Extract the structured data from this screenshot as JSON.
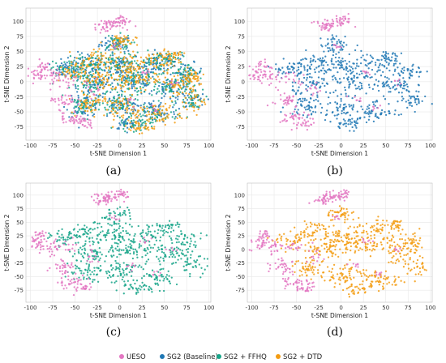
{
  "chart_data": [
    {
      "panel": "(a)",
      "type": "scatter",
      "xlabel": "t-SNE Dimension 1",
      "ylabel": "t-SNE Dimension 2",
      "xlim": [
        -105,
        102
      ],
      "ylim": [
        -97,
        122
      ],
      "xticks": [
        -100,
        -75,
        -50,
        -25,
        0,
        25,
        50,
        75,
        100
      ],
      "yticks": [
        -75,
        -50,
        -25,
        0,
        25,
        50,
        75,
        100
      ],
      "series_shown": [
        "UESO",
        "SG2 (Baseline)",
        "SG2 + FFHQ",
        "SG2 + DTD"
      ]
    },
    {
      "panel": "(b)",
      "type": "scatter",
      "xlabel": "t-SNE Dimension 1",
      "ylabel": "t-SNE Dimension 2",
      "xlim": [
        -105,
        102
      ],
      "ylim": [
        -97,
        122
      ],
      "xticks": [
        -100,
        -75,
        -50,
        -25,
        0,
        25,
        50,
        75,
        100
      ],
      "yticks": [
        -75,
        -50,
        -25,
        0,
        25,
        50,
        75,
        100
      ],
      "series_shown": [
        "UESO",
        "SG2 (Baseline)"
      ]
    },
    {
      "panel": "(c)",
      "type": "scatter",
      "xlabel": "t-SNE Dimension 1",
      "ylabel": "t-SNE Dimension 2",
      "xlim": [
        -105,
        102
      ],
      "ylim": [
        -97,
        122
      ],
      "xticks": [
        -100,
        -75,
        -50,
        -25,
        0,
        25,
        50,
        75,
        100
      ],
      "yticks": [
        -75,
        -50,
        -25,
        0,
        25,
        50,
        75,
        100
      ],
      "series_shown": [
        "UESO",
        "SG2 + FFHQ"
      ]
    },
    {
      "panel": "(d)",
      "type": "scatter",
      "xlabel": "t-SNE Dimension 1",
      "ylabel": "t-SNE Dimension 2",
      "xlim": [
        -105,
        102
      ],
      "ylim": [
        -97,
        122
      ],
      "xticks": [
        -100,
        -75,
        -50,
        -25,
        0,
        25,
        50,
        75,
        100
      ],
      "yticks": [
        -75,
        -50,
        -25,
        0,
        25,
        50,
        75,
        100
      ],
      "series_shown": [
        "UESO",
        "SG2 + DTD"
      ]
    }
  ],
  "series": [
    {
      "name": "UESO",
      "color": "#e377c2",
      "clusters": [
        {
          "cx": -12,
          "cy": 96,
          "sx": 9,
          "sy": 4,
          "n": 40
        },
        {
          "cx": 3,
          "cy": 103,
          "sx": 5,
          "sy": 4,
          "n": 18
        },
        {
          "cx": -20,
          "cy": 88,
          "sx": 5,
          "sy": 3,
          "n": 12
        },
        {
          "cx": -92,
          "cy": 12,
          "sx": 6,
          "sy": 7,
          "n": 30
        },
        {
          "cx": -87,
          "cy": 28,
          "sx": 4,
          "sy": 4,
          "n": 14
        },
        {
          "cx": -75,
          "cy": 5,
          "sx": 5,
          "sy": 8,
          "n": 20
        },
        {
          "cx": -63,
          "cy": -30,
          "sx": 7,
          "sy": 8,
          "n": 30
        },
        {
          "cx": -52,
          "cy": -60,
          "sx": 8,
          "sy": 7,
          "n": 34
        },
        {
          "cx": -40,
          "cy": -70,
          "sx": 5,
          "sy": 4,
          "n": 16
        },
        {
          "cx": -55,
          "cy": 5,
          "sx": 7,
          "sy": 6,
          "n": 14
        },
        {
          "cx": -30,
          "cy": -12,
          "sx": 6,
          "sy": 8,
          "n": 12
        },
        {
          "cx": 28,
          "cy": 15,
          "sx": 3,
          "sy": 3,
          "n": 6
        },
        {
          "cx": 15,
          "cy": -30,
          "sx": 4,
          "sy": 4,
          "n": 6
        },
        {
          "cx": 60,
          "cy": 0,
          "sx": 3,
          "sy": 3,
          "n": 5
        },
        {
          "cx": -5,
          "cy": 58,
          "sx": 3,
          "sy": 3,
          "n": 6
        },
        {
          "cx": 40,
          "cy": -45,
          "sx": 3,
          "sy": 3,
          "n": 5
        }
      ]
    },
    {
      "name": "SG2 (Baseline)",
      "color": "#1f77b4",
      "clusters": [
        {
          "cx": -5,
          "cy": 62,
          "sx": 9,
          "sy": 7,
          "n": 40
        },
        {
          "cx": -60,
          "cy": 20,
          "sx": 9,
          "sy": 7,
          "n": 40
        },
        {
          "cx": -35,
          "cy": 30,
          "sx": 10,
          "sy": 9,
          "n": 45
        },
        {
          "cx": 0,
          "cy": 28,
          "sx": 12,
          "sy": 10,
          "n": 55
        },
        {
          "cx": 40,
          "cy": 30,
          "sx": 12,
          "sy": 10,
          "n": 50
        },
        {
          "cx": 75,
          "cy": 15,
          "sx": 9,
          "sy": 8,
          "n": 35
        },
        {
          "cx": -30,
          "cy": -5,
          "sx": 12,
          "sy": 10,
          "n": 55
        },
        {
          "cx": 15,
          "cy": 0,
          "sx": 14,
          "sy": 10,
          "n": 60
        },
        {
          "cx": 60,
          "cy": -10,
          "sx": 12,
          "sy": 10,
          "n": 50
        },
        {
          "cx": -40,
          "cy": -40,
          "sx": 10,
          "sy": 9,
          "n": 45
        },
        {
          "cx": 0,
          "cy": -40,
          "sx": 12,
          "sy": 10,
          "n": 55
        },
        {
          "cx": 40,
          "cy": -50,
          "sx": 12,
          "sy": 9,
          "n": 50
        },
        {
          "cx": 10,
          "cy": -70,
          "sx": 9,
          "sy": 5,
          "n": 30
        },
        {
          "cx": 80,
          "cy": -30,
          "sx": 8,
          "sy": 9,
          "n": 30
        },
        {
          "cx": 55,
          "cy": 40,
          "sx": 7,
          "sy": 5,
          "n": 20
        }
      ]
    },
    {
      "name": "SG2 + FFHQ",
      "color": "#17a589",
      "clusters": [
        {
          "cx": -5,
          "cy": 62,
          "sx": 9,
          "sy": 8,
          "n": 40
        },
        {
          "cx": -60,
          "cy": 20,
          "sx": 9,
          "sy": 7,
          "n": 40
        },
        {
          "cx": -35,
          "cy": 30,
          "sx": 10,
          "sy": 9,
          "n": 45
        },
        {
          "cx": 0,
          "cy": 28,
          "sx": 12,
          "sy": 10,
          "n": 55
        },
        {
          "cx": 40,
          "cy": 30,
          "sx": 12,
          "sy": 10,
          "n": 50
        },
        {
          "cx": 75,
          "cy": 15,
          "sx": 9,
          "sy": 8,
          "n": 35
        },
        {
          "cx": -30,
          "cy": -5,
          "sx": 12,
          "sy": 10,
          "n": 55
        },
        {
          "cx": 15,
          "cy": 0,
          "sx": 14,
          "sy": 10,
          "n": 60
        },
        {
          "cx": 60,
          "cy": -10,
          "sx": 12,
          "sy": 10,
          "n": 50
        },
        {
          "cx": -40,
          "cy": -40,
          "sx": 10,
          "sy": 9,
          "n": 45
        },
        {
          "cx": 0,
          "cy": -40,
          "sx": 12,
          "sy": 10,
          "n": 55
        },
        {
          "cx": 40,
          "cy": -55,
          "sx": 12,
          "sy": 9,
          "n": 50
        },
        {
          "cx": 15,
          "cy": -72,
          "sx": 10,
          "sy": 5,
          "n": 30
        },
        {
          "cx": 82,
          "cy": -28,
          "sx": 8,
          "sy": 9,
          "n": 30
        },
        {
          "cx": 55,
          "cy": 42,
          "sx": 7,
          "sy": 5,
          "n": 20
        }
      ]
    },
    {
      "name": "SG2 + DTD",
      "color": "#f39c12",
      "clusters": [
        {
          "cx": 0,
          "cy": 65,
          "sx": 9,
          "sy": 7,
          "n": 40
        },
        {
          "cx": -55,
          "cy": 15,
          "sx": 9,
          "sy": 7,
          "n": 35
        },
        {
          "cx": -30,
          "cy": 35,
          "sx": 10,
          "sy": 9,
          "n": 45
        },
        {
          "cx": 5,
          "cy": 25,
          "sx": 12,
          "sy": 10,
          "n": 55
        },
        {
          "cx": 45,
          "cy": 35,
          "sx": 12,
          "sy": 9,
          "n": 50
        },
        {
          "cx": 80,
          "cy": 10,
          "sx": 8,
          "sy": 8,
          "n": 35
        },
        {
          "cx": -20,
          "cy": 0,
          "sx": 12,
          "sy": 10,
          "n": 55
        },
        {
          "cx": 20,
          "cy": 5,
          "sx": 14,
          "sy": 10,
          "n": 60
        },
        {
          "cx": 65,
          "cy": -5,
          "sx": 11,
          "sy": 10,
          "n": 45
        },
        {
          "cx": -35,
          "cy": -35,
          "sx": 10,
          "sy": 9,
          "n": 45
        },
        {
          "cx": 5,
          "cy": -45,
          "sx": 12,
          "sy": 10,
          "n": 55
        },
        {
          "cx": 45,
          "cy": -55,
          "sx": 12,
          "sy": 9,
          "n": 50
        },
        {
          "cx": 20,
          "cy": -75,
          "sx": 9,
          "sy": 5,
          "n": 30
        },
        {
          "cx": 85,
          "cy": -35,
          "sx": 7,
          "sy": 8,
          "n": 25
        },
        {
          "cx": 60,
          "cy": 45,
          "sx": 7,
          "sy": 5,
          "n": 20
        }
      ]
    }
  ],
  "legend": {
    "placement": "bottom",
    "items": [
      {
        "label": "UESO",
        "color": "#e377c2"
      },
      {
        "label": "SG2 (Baseline)",
        "color": "#1f77b4"
      },
      {
        "label": "SG2 + FFHQ",
        "color": "#17a589"
      },
      {
        "label": "SG2 + DTD",
        "color": "#f39c12"
      }
    ]
  }
}
